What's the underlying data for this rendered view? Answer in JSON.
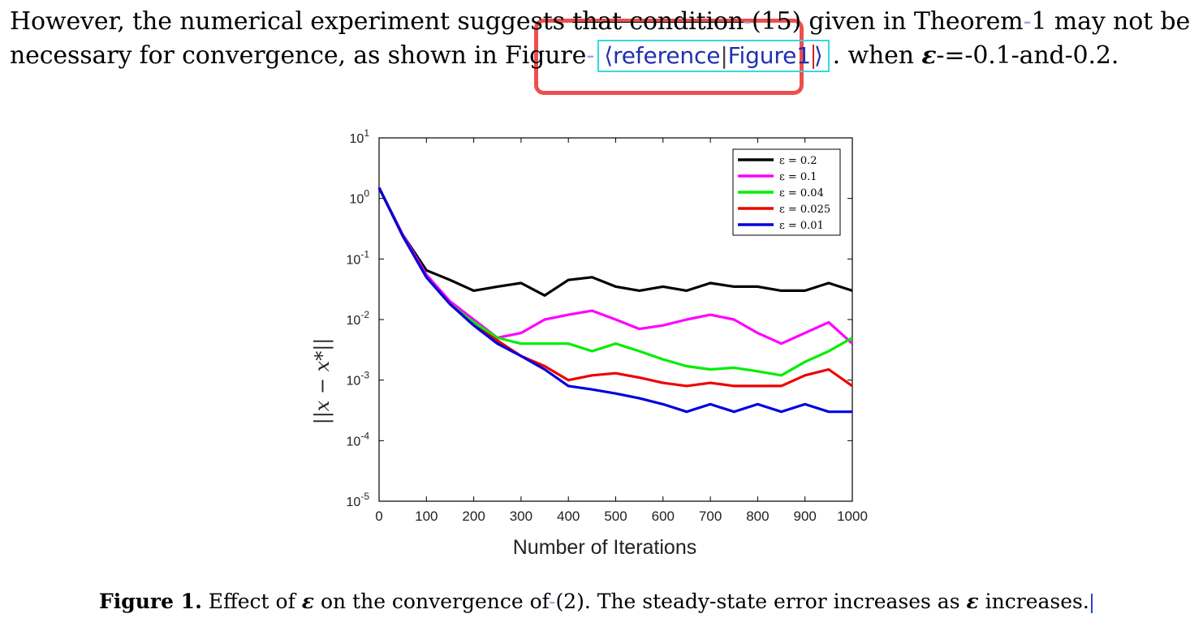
{
  "paragraph": {
    "line1_pre": "However, the numerical experiment suggests ",
    "line1_strike": "that condition",
    "line1_dash1": "-",
    "line1_mid": "(15) given in Theorem",
    "line1_dash2": "-",
    "line1_post": "1 may not be",
    "line2_pre": "necessary for convergence, as shown in Figure",
    "line2_dash": "-",
    "ref_open": "⟨",
    "ref_kind": "reference",
    "ref_sep": "|",
    "ref_target": "Figure1",
    "ref_close": "⟩",
    "line2_post_a": ". when ",
    "line2_eps": "ε",
    "line2_post_b": "-=-0.1-and-0.2."
  },
  "caption": {
    "label": "Figure 1.",
    "text_a": " Effect of ",
    "eps": "ε",
    "text_b": " on the convergence of",
    "dash": "-",
    "text_c": "(2).  The steady-state error increases as ",
    "eps2": "ε",
    "text_d": " increases."
  },
  "colors": {
    "highlight": "#ef4e4e",
    "ref_border": "#39d6e3",
    "ref_text": "#2130b0"
  },
  "chart_data": {
    "type": "line",
    "xlabel": "Number of Iterations",
    "ylabel": "||x − x*||",
    "x_range": [
      0,
      1000
    ],
    "y_scale": "log",
    "y_range": [
      1e-05,
      10
    ],
    "x_ticks": [
      "0",
      "100",
      "200",
      "300",
      "400",
      "500",
      "600",
      "700",
      "800",
      "900",
      "1000"
    ],
    "y_ticks": [
      {
        "base": "10",
        "exp": "1"
      },
      {
        "base": "10",
        "exp": "0"
      },
      {
        "base": "10",
        "exp": "-1"
      },
      {
        "base": "10",
        "exp": "-2"
      },
      {
        "base": "10",
        "exp": "-3"
      },
      {
        "base": "10",
        "exp": "-4"
      },
      {
        "base": "10",
        "exp": "-5"
      }
    ],
    "legend_position": "top-right",
    "series": [
      {
        "name": "ε = 0.2",
        "color": "#000000",
        "x": [
          0,
          50,
          100,
          150,
          200,
          250,
          300,
          350,
          400,
          450,
          500,
          550,
          600,
          650,
          700,
          750,
          800,
          850,
          900,
          950,
          1000
        ],
        "y": [
          1.5,
          0.25,
          0.065,
          0.045,
          0.03,
          0.035,
          0.04,
          0.025,
          0.045,
          0.05,
          0.035,
          0.03,
          0.035,
          0.03,
          0.04,
          0.035,
          0.035,
          0.03,
          0.03,
          0.04,
          0.03
        ]
      },
      {
        "name": "ε = 0.1",
        "color": "#ff00ff",
        "x": [
          0,
          50,
          100,
          150,
          200,
          250,
          300,
          350,
          400,
          450,
          500,
          550,
          600,
          650,
          700,
          750,
          800,
          850,
          900,
          950,
          1000
        ],
        "y": [
          1.5,
          0.25,
          0.055,
          0.02,
          0.01,
          0.005,
          0.006,
          0.01,
          0.012,
          0.014,
          0.01,
          0.007,
          0.008,
          0.01,
          0.012,
          0.01,
          0.006,
          0.004,
          0.006,
          0.009,
          0.004
        ]
      },
      {
        "name": "ε = 0.04",
        "color": "#00ee00",
        "x": [
          0,
          50,
          100,
          150,
          200,
          250,
          300,
          350,
          400,
          450,
          500,
          550,
          600,
          650,
          700,
          750,
          800,
          850,
          900,
          950,
          1000
        ],
        "y": [
          1.5,
          0.24,
          0.05,
          0.018,
          0.009,
          0.005,
          0.004,
          0.004,
          0.004,
          0.003,
          0.004,
          0.003,
          0.0022,
          0.0017,
          0.0015,
          0.0016,
          0.0014,
          0.0012,
          0.002,
          0.003,
          0.005
        ]
      },
      {
        "name": "ε = 0.025",
        "color": "#ee0000",
        "x": [
          0,
          50,
          100,
          150,
          200,
          250,
          300,
          350,
          400,
          450,
          500,
          550,
          600,
          650,
          700,
          750,
          800,
          850,
          900,
          950,
          1000
        ],
        "y": [
          1.5,
          0.24,
          0.05,
          0.018,
          0.008,
          0.0045,
          0.0025,
          0.0017,
          0.001,
          0.0012,
          0.0013,
          0.0011,
          0.0009,
          0.0008,
          0.0009,
          0.0008,
          0.0008,
          0.0008,
          0.0012,
          0.0015,
          0.0008
        ]
      },
      {
        "name": "ε = 0.01",
        "color": "#0000dd",
        "x": [
          0,
          50,
          100,
          150,
          200,
          250,
          300,
          350,
          400,
          450,
          500,
          550,
          600,
          650,
          700,
          750,
          800,
          850,
          900,
          950,
          1000
        ],
        "y": [
          1.5,
          0.24,
          0.05,
          0.018,
          0.008,
          0.004,
          0.0025,
          0.0015,
          0.0008,
          0.0007,
          0.0006,
          0.0005,
          0.0004,
          0.0003,
          0.0004,
          0.0003,
          0.0004,
          0.0003,
          0.0004,
          0.0003,
          0.0003
        ]
      }
    ]
  }
}
